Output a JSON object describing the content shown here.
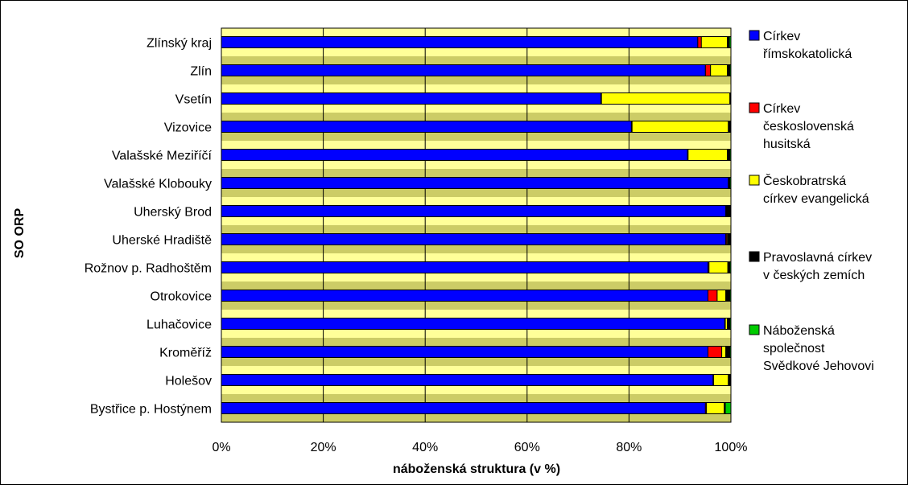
{
  "chart_data": {
    "type": "bar",
    "orientation": "horizontal",
    "stacked": "percent",
    "title": "",
    "xlabel": "náboženská struktura (v %)",
    "ylabel": "SO ORP",
    "xlim": [
      0,
      100
    ],
    "x_ticks": [
      "0%",
      "20%",
      "40%",
      "60%",
      "80%",
      "100%"
    ],
    "grid": true,
    "legend_position": "right",
    "categories": [
      "Zlínský kraj",
      "Zlín",
      "Vsetín",
      "Vizovice",
      "Valašské Meziříčí",
      "Valašské Klobouky",
      "Uherský Brod",
      "Uherské Hradiště",
      "Rožnov p. Radhoštěm",
      "Otrokovice",
      "Luhačovice",
      "Kroměříž",
      "Holešov",
      "Bystřice p. Hostýnem"
    ],
    "series": [
      {
        "name": "Církev římskokatolická",
        "legend_lines": [
          "Církev",
          "římskokatolická"
        ],
        "color": "#0000ff",
        "values": [
          93.5,
          95.0,
          74.5,
          80.5,
          91.5,
          99.5,
          99.0,
          99.0,
          95.5,
          95.5,
          98.8,
          95.5,
          96.5,
          95.0
        ]
      },
      {
        "name": "Církev československá husitská",
        "legend_lines": [
          "Církev",
          "československá",
          "husitská"
        ],
        "color": "#ff0000",
        "values": [
          0.7,
          1.0,
          0.1,
          0.1,
          0.1,
          0.1,
          0.1,
          0.2,
          0.2,
          1.8,
          0.1,
          2.7,
          0.1,
          0.2
        ]
      },
      {
        "name": "Českobratrská církev evangelická",
        "legend_lines": [
          "Českobratrská",
          "církev evangelická"
        ],
        "color": "#ffff00",
        "values": [
          5.1,
          3.3,
          25.2,
          18.9,
          7.7,
          0.1,
          0.1,
          0.2,
          3.7,
          1.7,
          0.4,
          0.8,
          2.9,
          3.5
        ]
      },
      {
        "name": "Pravoslavná církev v českých zemích",
        "legend_lines": [
          "Pravoslavná církev",
          "v českých zemích"
        ],
        "color": "#000000",
        "values": [
          0.4,
          0.5,
          0.1,
          0.4,
          0.5,
          0.1,
          0.7,
          0.5,
          0.4,
          0.8,
          0.5,
          0.8,
          0.4,
          0.2
        ]
      },
      {
        "name": "Náboženská společnost Svědkové Jehovovi",
        "legend_lines": [
          "Náboženská",
          "společnost",
          "Svědkové Jehovovi"
        ],
        "color": "#00cc00",
        "values": [
          0.3,
          0.2,
          0.1,
          0.1,
          0.2,
          0.2,
          0.1,
          0.1,
          0.2,
          0.2,
          0.2,
          0.2,
          0.1,
          1.1
        ]
      }
    ],
    "colors": {
      "band_light": "#ffff99",
      "band_dark": "#cccc66",
      "gridline": "#000000",
      "frame": "#000000"
    }
  }
}
